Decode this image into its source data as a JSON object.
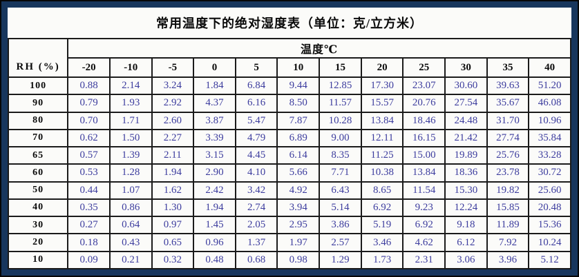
{
  "title": "常用温度下的绝对湿度表（单位：克/立方米）",
  "table": {
    "temp_header": "温度℃",
    "rh_header": "RH (%)",
    "temps": [
      "-20",
      "-10",
      "-5",
      "0",
      "5",
      "10",
      "15",
      "20",
      "25",
      "30",
      "35",
      "40"
    ],
    "rows": [
      {
        "rh": "100",
        "values": [
          "0.88",
          "2.14",
          "3.24",
          "1.84",
          "6.84",
          "9.44",
          "12.85",
          "17.30",
          "23.07",
          "30.60",
          "39.63",
          "51.20"
        ]
      },
      {
        "rh": "90",
        "values": [
          "0.79",
          "1.93",
          "2.92",
          "4.37",
          "6.16",
          "8.50",
          "11.57",
          "15.57",
          "20.76",
          "27.54",
          "35.67",
          "46.08"
        ]
      },
      {
        "rh": "80",
        "values": [
          "0.70",
          "1.71",
          "2.60",
          "3.87",
          "5.47",
          "7.87",
          "10.28",
          "13.84",
          "18.46",
          "24.48",
          "31.70",
          "10.96"
        ]
      },
      {
        "rh": "70",
        "values": [
          "0.62",
          "1.50",
          "2.27",
          "3.39",
          "4.79",
          "6.89",
          "9.00",
          "12.11",
          "16.15",
          "21.42",
          "27.74",
          "35.84"
        ]
      },
      {
        "rh": "65",
        "values": [
          "0.57",
          "1.39",
          "2.11",
          "3.15",
          "4.45",
          "6.14",
          "8.35",
          "11.25",
          "15.00",
          "19.89",
          "25.76",
          "33.28"
        ]
      },
      {
        "rh": "60",
        "values": [
          "0.53",
          "1.28",
          "1.94",
          "2.90",
          "4.10",
          "5.66",
          "7.71",
          "10.38",
          "13.84",
          "18.36",
          "23.78",
          "30.72"
        ]
      },
      {
        "rh": "50",
        "values": [
          "0.44",
          "1.07",
          "1.62",
          "2.42",
          "3.42",
          "4.92",
          "6.43",
          "8.65",
          "11.54",
          "15.30",
          "19.82",
          "25.60"
        ]
      },
      {
        "rh": "40",
        "values": [
          "0.35",
          "0.86",
          "1.30",
          "1.94",
          "2.74",
          "3.94",
          "5.14",
          "6.92",
          "9.23",
          "12.24",
          "15.85",
          "20.48"
        ]
      },
      {
        "rh": "30",
        "values": [
          "0.27",
          "0.64",
          "0.97",
          "1.45",
          "2.05",
          "2.95",
          "3.86",
          "5.19",
          "6.92",
          "9.18",
          "11.89",
          "15.36"
        ]
      },
      {
        "rh": "20",
        "values": [
          "0.18",
          "0.43",
          "0.65",
          "0.96",
          "1.37",
          "1.97",
          "2.57",
          "3.46",
          "4.62",
          "6.12",
          "7.92",
          "10.24"
        ]
      },
      {
        "rh": "10",
        "values": [
          "0.09",
          "0.21",
          "0.32",
          "0.48",
          "0.68",
          "0.98",
          "1.29",
          "1.73",
          "2.31",
          "3.06",
          "3.96",
          "5.12"
        ]
      }
    ]
  },
  "colors": {
    "frame_border": "#17365d",
    "grid_line": "#1a1a1a",
    "value_text": "#3c3c9e",
    "header_text": "#0b0b0b",
    "background": "#fbfbf9"
  }
}
